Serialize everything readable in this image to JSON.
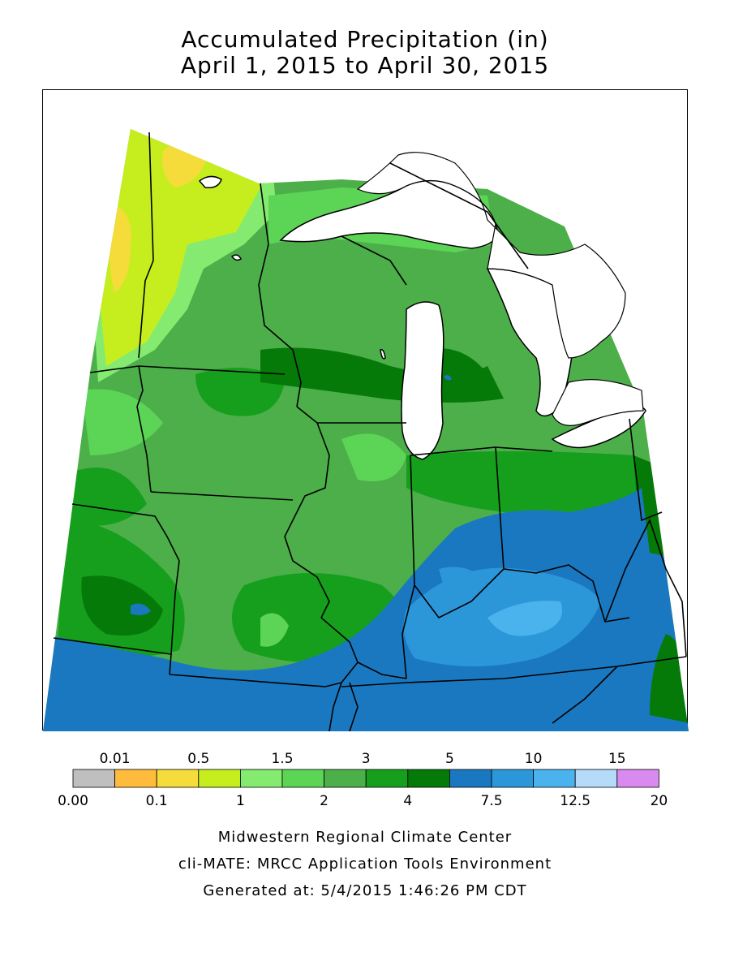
{
  "title": {
    "line1": "Accumulated Precipitation (in)",
    "line2": "April 1, 2015 to April 30, 2015"
  },
  "legend": {
    "colors": [
      "#bfbfbf",
      "#ffbb3c",
      "#f5dc3a",
      "#c6ee1e",
      "#85eb70",
      "#5cd456",
      "#4caf4a",
      "#169f1c",
      "#057a08",
      "#1a78c0",
      "#2c97d8",
      "#4ab3ee",
      "#b4dcfa",
      "#d88aee"
    ],
    "top_labels": [
      "0.01",
      "0.5",
      "1.5",
      "3",
      "5",
      "10",
      "15"
    ],
    "bottom_labels": [
      "0.00",
      "0.1",
      "1",
      "2",
      "4",
      "7.5",
      "12.5",
      "20"
    ]
  },
  "footer": {
    "line1": "Midwestern Regional Climate Center",
    "line2": "cli-MATE: MRCC Application Tools Environment",
    "line3": "Generated at: 5/4/2015 1:46:26 PM CDT"
  },
  "map": {
    "water_color": "#ffffff",
    "boundary_color": "#000000"
  }
}
